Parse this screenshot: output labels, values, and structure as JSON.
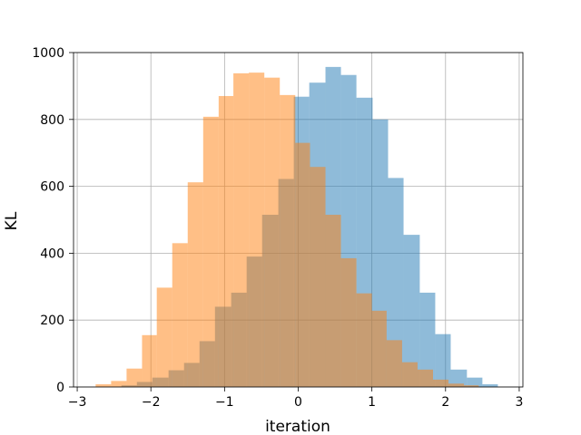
{
  "chart_data": {
    "type": "bar",
    "title": "",
    "xlabel": "iteration",
    "ylabel": "KL",
    "xlim": [
      -3.05,
      3.05
    ],
    "ylim": [
      0,
      1000
    ],
    "xticks": [
      -3,
      -2,
      -1,
      0,
      1,
      2,
      3
    ],
    "yticks": [
      0,
      200,
      400,
      600,
      800,
      1000
    ],
    "grid": true,
    "legend": "none",
    "series": [
      {
        "color": "#1f77b4",
        "opacity": 0.5,
        "bins": [
          {
            "x0": -2.4,
            "x1": -2.19,
            "value": 5
          },
          {
            "x0": -2.19,
            "x1": -1.98,
            "value": 15
          },
          {
            "x0": -1.98,
            "x1": -1.76,
            "value": 28
          },
          {
            "x0": -1.76,
            "x1": -1.55,
            "value": 50
          },
          {
            "x0": -1.55,
            "x1": -1.34,
            "value": 72
          },
          {
            "x0": -1.34,
            "x1": -1.13,
            "value": 137
          },
          {
            "x0": -1.13,
            "x1": -0.91,
            "value": 240
          },
          {
            "x0": -0.91,
            "x1": -0.7,
            "value": 282
          },
          {
            "x0": -0.7,
            "x1": -0.49,
            "value": 390
          },
          {
            "x0": -0.49,
            "x1": -0.27,
            "value": 515
          },
          {
            "x0": -0.27,
            "x1": -0.06,
            "value": 622
          },
          {
            "x0": -0.06,
            "x1": 0.15,
            "value": 868
          },
          {
            "x0": 0.15,
            "x1": 0.37,
            "value": 910
          },
          {
            "x0": 0.37,
            "x1": 0.58,
            "value": 957
          },
          {
            "x0": 0.58,
            "x1": 0.79,
            "value": 933
          },
          {
            "x0": 0.79,
            "x1": 1.01,
            "value": 865
          },
          {
            "x0": 1.01,
            "x1": 1.22,
            "value": 800
          },
          {
            "x0": 1.22,
            "x1": 1.43,
            "value": 625
          },
          {
            "x0": 1.43,
            "x1": 1.65,
            "value": 455
          },
          {
            "x0": 1.65,
            "x1": 1.86,
            "value": 282
          },
          {
            "x0": 1.86,
            "x1": 2.07,
            "value": 158
          },
          {
            "x0": 2.07,
            "x1": 2.29,
            "value": 52
          },
          {
            "x0": 2.29,
            "x1": 2.5,
            "value": 28
          },
          {
            "x0": 2.5,
            "x1": 2.71,
            "value": 8
          }
        ]
      },
      {
        "color": "#ff7f0e",
        "opacity": 0.5,
        "bins": [
          {
            "x0": -2.75,
            "x1": -2.54,
            "value": 8
          },
          {
            "x0": -2.54,
            "x1": -2.33,
            "value": 18
          },
          {
            "x0": -2.33,
            "x1": -2.12,
            "value": 55
          },
          {
            "x0": -2.12,
            "x1": -1.92,
            "value": 155
          },
          {
            "x0": -1.92,
            "x1": -1.71,
            "value": 297
          },
          {
            "x0": -1.71,
            "x1": -1.5,
            "value": 430
          },
          {
            "x0": -1.5,
            "x1": -1.29,
            "value": 612
          },
          {
            "x0": -1.29,
            "x1": -1.08,
            "value": 808
          },
          {
            "x0": -1.08,
            "x1": -0.88,
            "value": 870
          },
          {
            "x0": -0.88,
            "x1": -0.67,
            "value": 938
          },
          {
            "x0": -0.67,
            "x1": -0.46,
            "value": 940
          },
          {
            "x0": -0.46,
            "x1": -0.25,
            "value": 925
          },
          {
            "x0": -0.25,
            "x1": -0.04,
            "value": 873
          },
          {
            "x0": -0.04,
            "x1": 0.16,
            "value": 730
          },
          {
            "x0": 0.16,
            "x1": 0.37,
            "value": 658
          },
          {
            "x0": 0.37,
            "x1": 0.58,
            "value": 515
          },
          {
            "x0": 0.58,
            "x1": 0.79,
            "value": 385
          },
          {
            "x0": 0.79,
            "x1": 1.0,
            "value": 280
          },
          {
            "x0": 1.0,
            "x1": 1.2,
            "value": 228
          },
          {
            "x0": 1.2,
            "x1": 1.41,
            "value": 140
          },
          {
            "x0": 1.41,
            "x1": 1.62,
            "value": 74
          },
          {
            "x0": 1.62,
            "x1": 1.83,
            "value": 52
          },
          {
            "x0": 1.83,
            "x1": 2.04,
            "value": 22
          },
          {
            "x0": 2.04,
            "x1": 2.25,
            "value": 10
          },
          {
            "x0": 2.25,
            "x1": 2.45,
            "value": 5
          }
        ]
      }
    ]
  }
}
